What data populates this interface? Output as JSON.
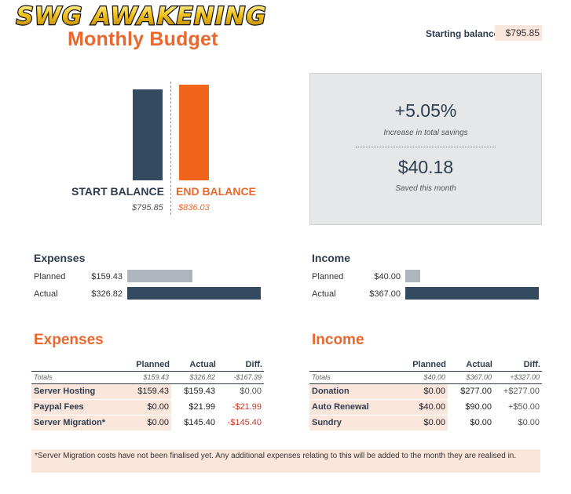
{
  "header": {
    "logo_text": "SWG AWAKENING",
    "title": "Monthly Budget",
    "starting_balance_label": "Starting balance:",
    "starting_balance_value": "$795.85"
  },
  "balance_chart": {
    "start_label": "START BALANCE",
    "end_label": "END BALANCE",
    "start_value_text": "$795.85",
    "end_value_text": "$836.03",
    "start_value": 795.85,
    "end_value": 836.03,
    "start_color": "#344a61",
    "end_color": "#f0651b"
  },
  "savings": {
    "percent": "+5.05%",
    "percent_caption": "Increase in total savings",
    "amount": "$40.18",
    "amount_caption": "Saved this month"
  },
  "summary": {
    "expenses": {
      "title": "Expenses",
      "planned_label": "Planned",
      "planned_value_text": "$159.43",
      "planned_value": 159.43,
      "actual_label": "Actual",
      "actual_value_text": "$326.82",
      "actual_value": 326.82
    },
    "income": {
      "title": "Income",
      "planned_label": "Planned",
      "planned_value_text": "$40.00",
      "planned_value": 40.0,
      "actual_label": "Actual",
      "actual_value_text": "$367.00",
      "actual_value": 367.0
    },
    "planned_color": "#adb5bd",
    "actual_color": "#344a61"
  },
  "expenses_table": {
    "title": "Expenses",
    "headers": [
      "Planned",
      "Actual",
      "Diff."
    ],
    "totals": {
      "label": "Totals",
      "planned": "$159.43",
      "actual": "$326.82",
      "diff": "-$167.39"
    },
    "rows": [
      {
        "name": "Server Hosting",
        "planned": "$159.43",
        "actual": "$159.43",
        "diff": "$0.00"
      },
      {
        "name": "Paypal Fees",
        "planned": "$0.00",
        "actual": "$21.99",
        "diff": "-$21.99"
      },
      {
        "name": "Server Migration*",
        "planned": "$0.00",
        "actual": "$145.40",
        "diff": "-$145.40"
      }
    ]
  },
  "income_table": {
    "title": "Income",
    "headers": [
      "Planned",
      "Actual",
      "Diff."
    ],
    "totals": {
      "label": "Totals",
      "planned": "$40.00",
      "actual": "$367.00",
      "diff": "+$327.00"
    },
    "rows": [
      {
        "name": "Donation",
        "planned": "$0.00",
        "actual": "$277.00",
        "diff": "+$277.00"
      },
      {
        "name": "Auto Renewal",
        "planned": "$40.00",
        "actual": "$90.00",
        "diff": "+$50.00"
      },
      {
        "name": "Sundry",
        "planned": "$0.00",
        "actual": "$0.00",
        "diff": "$0.00"
      }
    ]
  },
  "footnote": "*Server Migration costs have not been finalised yet. Any additional expenses relating to this will be added to the month they are realised in."
}
